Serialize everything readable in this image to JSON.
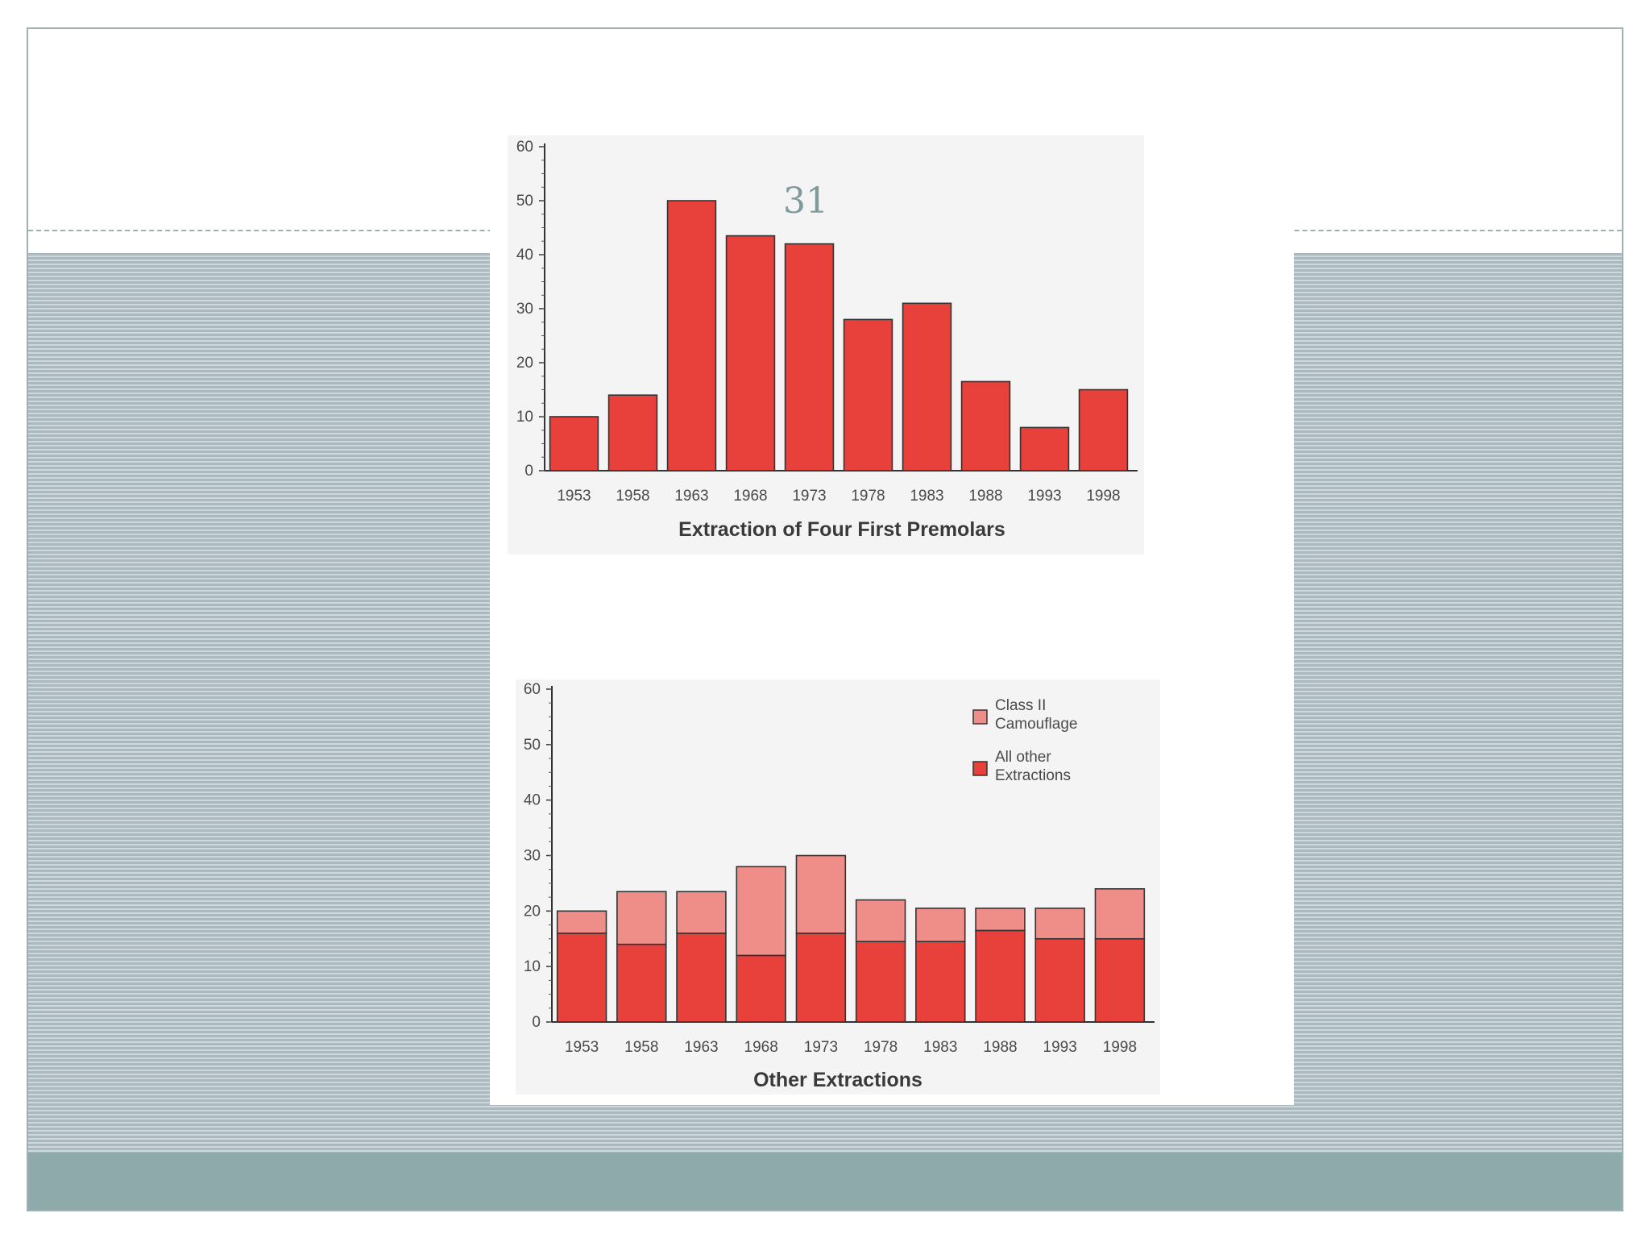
{
  "slide": {
    "page_number": "31",
    "colors": {
      "stripe_dark": "#aab9bf",
      "stripe_light": "#cfd9dd",
      "footer": "#8faaaa",
      "bar_primary": "#e8403a",
      "bar_secondary": "#ef8d89"
    }
  },
  "chart_data": [
    {
      "type": "bar",
      "title": "Extraction of Four First Premolars",
      "xlabel": "",
      "ylabel": "",
      "categories": [
        "1953",
        "1958",
        "1963",
        "1968",
        "1973",
        "1978",
        "1983",
        "1988",
        "1993",
        "1998"
      ],
      "values": [
        10,
        14,
        50,
        43.5,
        42,
        28,
        31,
        16.5,
        8,
        15
      ],
      "ylim": [
        0,
        60
      ],
      "yticks": [
        "0",
        "10",
        "20",
        "30",
        "40",
        "50",
        "60"
      ],
      "grid": false,
      "legend": null
    },
    {
      "type": "bar",
      "stacked": true,
      "title": "Other Extractions",
      "xlabel": "",
      "ylabel": "",
      "categories": [
        "1953",
        "1958",
        "1963",
        "1968",
        "1973",
        "1978",
        "1983",
        "1988",
        "1993",
        "1998"
      ],
      "series": [
        {
          "name": "All other Extractions",
          "label_lines": [
            "All other",
            "Extractions"
          ],
          "color": "#e8403a",
          "values": [
            16,
            14,
            16,
            12,
            16,
            14.5,
            14.5,
            16.5,
            15,
            15
          ]
        },
        {
          "name": "Class II Camouflage",
          "label_lines": [
            "Class II",
            "Camouflage"
          ],
          "color": "#ef8d89",
          "values": [
            4,
            9.5,
            7.5,
            16,
            14,
            7.5,
            6,
            4,
            5.5,
            9
          ]
        }
      ],
      "legend_order": [
        1,
        0
      ],
      "ylim": [
        0,
        60
      ],
      "yticks": [
        "0",
        "10",
        "20",
        "30",
        "40",
        "50",
        "60"
      ],
      "grid": false,
      "legend": "top-right"
    }
  ]
}
